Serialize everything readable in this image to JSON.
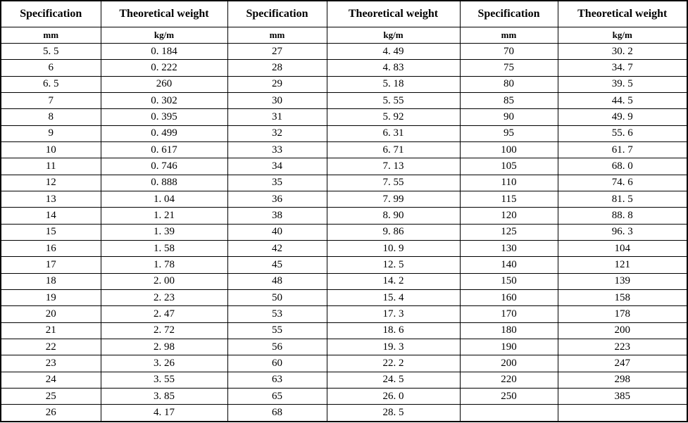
{
  "page": {
    "background_color": "#ffffff",
    "text_color": "#000000",
    "border_color": "#000000"
  },
  "table": {
    "column_headers": [
      "Specification",
      "Theoretical weight",
      "Specification",
      "Theoretical weight",
      "Specification",
      "Theoretical weight"
    ],
    "unit_labels": [
      "mm",
      "kg/m",
      "mm",
      "kg/m",
      "mm",
      "kg/m"
    ],
    "rows": [
      [
        "5. 5",
        "0. 184",
        "27",
        "4. 49",
        "70",
        "30. 2"
      ],
      [
        "6",
        "0. 222",
        "28",
        "4. 83",
        "75",
        "34. 7"
      ],
      [
        "6. 5",
        "260",
        "29",
        "5. 18",
        "80",
        "39. 5"
      ],
      [
        "7",
        "0. 302",
        "30",
        "5. 55",
        "85",
        "44. 5"
      ],
      [
        "8",
        "0. 395",
        "31",
        "5. 92",
        "90",
        "49. 9"
      ],
      [
        "9",
        "0. 499",
        "32",
        "6. 31",
        "95",
        "55. 6"
      ],
      [
        "10",
        "0. 617",
        "33",
        "6. 71",
        "100",
        "61. 7"
      ],
      [
        "11",
        "0. 746",
        "34",
        "7. 13",
        "105",
        "68. 0"
      ],
      [
        "12",
        "0. 888",
        "35",
        "7. 55",
        "110",
        "74. 6"
      ],
      [
        "13",
        "1. 04",
        "36",
        "7. 99",
        "115",
        "81. 5"
      ],
      [
        "14",
        "1. 21",
        "38",
        "8. 90",
        "120",
        "88. 8"
      ],
      [
        "15",
        "1. 39",
        "40",
        "9. 86",
        "125",
        "96. 3"
      ],
      [
        "16",
        "1. 58",
        "42",
        "10. 9",
        "130",
        "104"
      ],
      [
        "17",
        "1. 78",
        "45",
        "12. 5",
        "140",
        "121"
      ],
      [
        "18",
        "2. 00",
        "48",
        "14. 2",
        "150",
        "139"
      ],
      [
        "19",
        "2. 23",
        "50",
        "15. 4",
        "160",
        "158"
      ],
      [
        "20",
        "2. 47",
        "53",
        "17. 3",
        "170",
        "178"
      ],
      [
        "21",
        "2. 72",
        "55",
        "18. 6",
        "180",
        "200"
      ],
      [
        "22",
        "2. 98",
        "56",
        "19. 3",
        "190",
        "223"
      ],
      [
        "23",
        "3. 26",
        "60",
        "22. 2",
        "200",
        "247"
      ],
      [
        "24",
        "3. 55",
        "63",
        "24. 5",
        "220",
        "298"
      ],
      [
        "25",
        "3. 85",
        "65",
        "26. 0",
        "250",
        "385"
      ],
      [
        "26",
        "4. 17",
        "68",
        "28. 5",
        "",
        ""
      ]
    ]
  }
}
